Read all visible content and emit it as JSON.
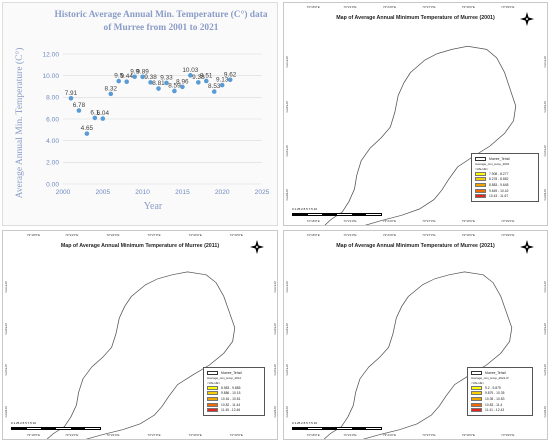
{
  "chart": {
    "title_line1": "Historic Average Annual Min. Temperature (C°) data",
    "title_line2": "of Murree from 2001 to 2021",
    "xlabel": "Year",
    "ylabel": "Average Annual Min. Temperature (C°)"
  },
  "chart_data": {
    "type": "scatter",
    "title": "Historic Average Annual Min. Temperature (C°) data of Murree from 2001 to 2021",
    "xlabel": "Year",
    "ylabel": "Average Annual Min. Temperature (C°)",
    "xlim": [
      2000,
      2025
    ],
    "ylim": [
      0,
      12
    ],
    "xticks": [
      2000,
      2005,
      2010,
      2015,
      2020,
      2025
    ],
    "yticks": [
      0,
      2,
      4,
      6,
      8,
      10,
      12
    ],
    "ytick_labels": [
      "0.00",
      "2.00",
      "4.00",
      "6.00",
      "8.00",
      "10.00",
      "12.00"
    ],
    "grid": true,
    "marker_color": "#5b9bd5",
    "x": [
      2001,
      2002,
      2003,
      2004,
      2005,
      2006,
      2007,
      2008,
      2009,
      2010,
      2011,
      2012,
      2013,
      2014,
      2015,
      2016,
      2017,
      2018,
      2019,
      2020,
      2021
    ],
    "y": [
      7.91,
      6.78,
      4.65,
      6.1,
      6.04,
      8.32,
      9.5,
      9.44,
      9.9,
      9.89,
      9.38,
      8.81,
      9.33,
      8.59,
      8.96,
      10.03,
      9.38,
      9.51,
      8.53,
      9.13,
      9.62
    ],
    "labels": [
      "7.91",
      "6.78",
      "4.65",
      "6.1",
      "6.04",
      "8.32",
      "9.5",
      "9.44",
      "9.9",
      "9.89",
      "9.38",
      "8.81",
      "9.33",
      "8.59",
      "8.96",
      "10.03",
      "9.38",
      "9.51",
      "8.53",
      "9.13",
      "9.62"
    ]
  },
  "maps": [
    {
      "title": "Map of Average Annual Minimum Temperature of Murree (2001)",
      "boundary_label": "Murree_Tehsil",
      "layer_name": "Average_min_temp_2001",
      "value_label": "<VALUE>",
      "classes": [
        {
          "range": "7.908 - 8.277",
          "color": "#ffff00"
        },
        {
          "range": "8.278 - 8.882",
          "color": "#f5d000"
        },
        {
          "range": "8.883 - 9.648",
          "color": "#f0a400"
        },
        {
          "range": "9.649 - 10.42",
          "color": "#f06a00"
        },
        {
          "range": "10.43 - 11.67",
          "color": "#e52420"
        }
      ],
      "top_coords": [
        "73°18'0\"E",
        "73°21'0\"E",
        "73°24'0\"E",
        "73°27'0\"E",
        "73°30'0\"E",
        "73°33'0\"E"
      ],
      "right_coords": [
        "33°57'0\"N",
        "33°54'0\"N",
        "33°51'0\"N",
        "33°48'0\"N"
      ],
      "scale_labels": "0  1.25  2.5     5      7.5     10"
    },
    {
      "title": "Map of Average Annual Minimum Temperature of Murree (2011)",
      "boundary_label": "Murree_Tehsil",
      "layer_name": "Average_min_temp_2011",
      "value_label": "<VALUE>",
      "classes": [
        {
          "range": "8.983 - 9.885",
          "color": "#ffff00"
        },
        {
          "range": "9.886 - 10.15",
          "color": "#f5d000"
        },
        {
          "range": "10.16 - 10.81",
          "color": "#f0a400"
        },
        {
          "range": "10.82 - 11.44",
          "color": "#f06a00"
        },
        {
          "range": "11.45 - 12.46",
          "color": "#e52420"
        }
      ],
      "top_coords": [
        "73°18'0\"E",
        "73°21'0\"E",
        "73°24'0\"E",
        "73°27'0\"E",
        "73°30'0\"E",
        "73°33'0\"E"
      ],
      "right_coords": [
        "33°57'0\"N",
        "33°54'0\"N",
        "33°51'0\"N",
        "33°48'0\"N"
      ],
      "scale_labels": "0  1.25  2.5     5      7.5     10"
    },
    {
      "title": "Map of Average Annual Minimum Temperature of Murree (2021)",
      "boundary_label": "Murree_Tehsil",
      "layer_name": "Average_min_temp_2021.tif",
      "value_label": "<VALUE>",
      "classes": [
        {
          "range": "9.2 - 9.879",
          "color": "#ffff00"
        },
        {
          "range": "9.879 - 10.35",
          "color": "#f5d000"
        },
        {
          "range": "10.35 - 10.83",
          "color": "#f0a400"
        },
        {
          "range": "10.83 - 11.4",
          "color": "#f06a00"
        },
        {
          "range": "11.41 - 12.43",
          "color": "#e52420"
        }
      ],
      "top_coords": [
        "73°18'0\"E",
        "73°21'0\"E",
        "73°24'0\"E",
        "73°27'0\"E",
        "73°30'0\"E",
        "73°33'0\"E"
      ],
      "right_coords": [
        "33°57'0\"N",
        "33°54'0\"N",
        "33°51'0\"N",
        "33°48'0\"N"
      ],
      "scale_labels": "0  1.25  2.5     5      7.5     10"
    }
  ]
}
